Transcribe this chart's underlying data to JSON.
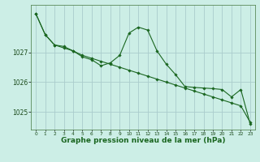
{
  "background_color": "#cceee6",
  "grid_color": "#aacccc",
  "line_color": "#1a6620",
  "marker_color": "#1a6620",
  "xlabel": "Graphe pression niveau de la mer (hPa)",
  "xlabel_fontsize": 6.5,
  "ylim": [
    1024.4,
    1028.6
  ],
  "yticks": [
    1025,
    1026,
    1027
  ],
  "xlim": [
    -0.5,
    23.5
  ],
  "xticks": [
    0,
    1,
    2,
    3,
    4,
    5,
    6,
    7,
    8,
    9,
    10,
    11,
    12,
    13,
    14,
    15,
    16,
    17,
    18,
    19,
    20,
    21,
    22,
    23
  ],
  "series1_x": [
    0,
    1,
    2,
    3,
    4,
    5,
    6,
    7,
    8,
    9,
    10,
    11,
    12,
    13,
    14,
    15,
    16,
    17,
    18,
    19,
    20,
    21,
    22,
    23
  ],
  "series1_y": [
    1028.3,
    1027.6,
    1027.25,
    1027.15,
    1027.05,
    1026.9,
    1026.8,
    1026.7,
    1026.6,
    1026.5,
    1026.4,
    1026.3,
    1026.2,
    1026.1,
    1026.0,
    1025.9,
    1025.8,
    1025.7,
    1025.6,
    1025.5,
    1025.4,
    1025.3,
    1025.2,
    1024.65
  ],
  "series2_x": [
    0,
    1,
    2,
    3,
    4,
    5,
    6,
    7,
    8,
    9,
    10,
    11,
    12,
    13,
    14,
    15,
    16,
    17,
    18,
    19,
    20,
    21,
    22,
    23
  ],
  "series2_y": [
    1028.3,
    1027.6,
    1027.25,
    1027.2,
    1027.05,
    1026.85,
    1026.75,
    1026.55,
    1026.65,
    1026.9,
    1027.65,
    1027.85,
    1027.75,
    1027.05,
    1026.6,
    1026.25,
    1025.85,
    1025.82,
    1025.8,
    1025.78,
    1025.75,
    1025.5,
    1025.75,
    1024.6
  ]
}
